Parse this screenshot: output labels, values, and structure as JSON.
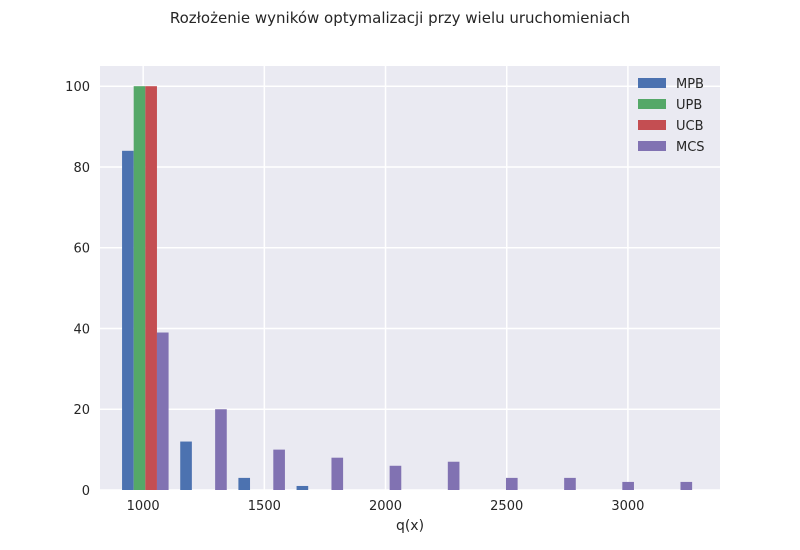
{
  "chart_data": {
    "type": "bar",
    "title": "Rozłożenie wyników optymalizacji przy wielu uruchomieniach",
    "xlabel": "q(x)",
    "ylabel": "",
    "xlim": [
      822,
      3380
    ],
    "ylim": [
      0,
      105
    ],
    "xticks": [
      1000,
      1500,
      2000,
      2500,
      3000
    ],
    "yticks": [
      0,
      20,
      40,
      60,
      80,
      100
    ],
    "grid": true,
    "legend_position": "top-right",
    "bin_width": 240,
    "bar_width": 48,
    "bins": [
      {
        "start": 913
      },
      {
        "start": 1153
      },
      {
        "start": 1393
      },
      {
        "start": 1633
      },
      {
        "start": 1873
      },
      {
        "start": 2113
      },
      {
        "start": 2353
      },
      {
        "start": 2593
      },
      {
        "start": 2833
      },
      {
        "start": 3073
      }
    ],
    "series": [
      {
        "name": "MPB",
        "color": "#4c72b0",
        "values": [
          84,
          12,
          3,
          1,
          0,
          0,
          0,
          0,
          0,
          0
        ]
      },
      {
        "name": "UPB",
        "color": "#55a868",
        "values": [
          100,
          0,
          0,
          0,
          0,
          0,
          0,
          0,
          0,
          0
        ]
      },
      {
        "name": "UCB",
        "color": "#c44e52",
        "values": [
          100,
          0,
          0,
          0,
          0,
          0,
          0,
          0,
          0,
          0
        ]
      },
      {
        "name": "MCS",
        "color": "#8172b2",
        "values": [
          39,
          20,
          10,
          8,
          6,
          7,
          3,
          3,
          2,
          2
        ]
      }
    ]
  }
}
